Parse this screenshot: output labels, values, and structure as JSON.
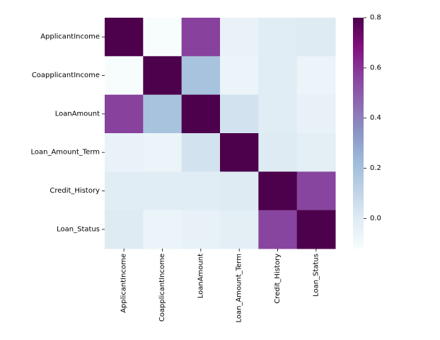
{
  "chart_data": {
    "type": "heatmap",
    "title": "",
    "xlabel": "",
    "ylabel": "",
    "rows": [
      "ApplicantIncome",
      "CoapplicantIncome",
      "LoanAmount",
      "Loan_Amount_Term",
      "Credit_History",
      "Loan_Status"
    ],
    "columns": [
      "ApplicantIncome",
      "CoapplicantIncome",
      "LoanAmount",
      "Loan_Amount_Term",
      "Credit_History",
      "Loan_Status"
    ],
    "values": [
      [
        1.0,
        -0.12,
        0.57,
        -0.05,
        -0.01,
        0.0
      ],
      [
        -0.12,
        1.0,
        0.19,
        -0.06,
        -0.01,
        -0.06
      ],
      [
        0.57,
        0.19,
        1.0,
        0.04,
        -0.01,
        -0.04
      ],
      [
        -0.05,
        -0.06,
        0.04,
        1.0,
        0.0,
        -0.02
      ],
      [
        -0.01,
        -0.01,
        -0.01,
        0.0,
        1.0,
        0.56
      ],
      [
        0.0,
        -0.06,
        -0.04,
        -0.02,
        0.56,
        1.0
      ]
    ],
    "colorbar": {
      "min": -0.12,
      "max": 0.8,
      "ticks": [
        0.0,
        0.2,
        0.4,
        0.6,
        0.8
      ],
      "tick_labels": [
        "0.0",
        "0.2",
        "0.4",
        "0.6",
        "0.8"
      ],
      "colormap": "BuPu",
      "colormap_stops": [
        "#f7fcfd",
        "#e0ecf4",
        "#bfd3e6",
        "#9ebcda",
        "#8c96c6",
        "#8c6bb1",
        "#88419d",
        "#810f7c",
        "#4d004b"
      ]
    },
    "grid": false,
    "legend": "colorbar-right"
  }
}
